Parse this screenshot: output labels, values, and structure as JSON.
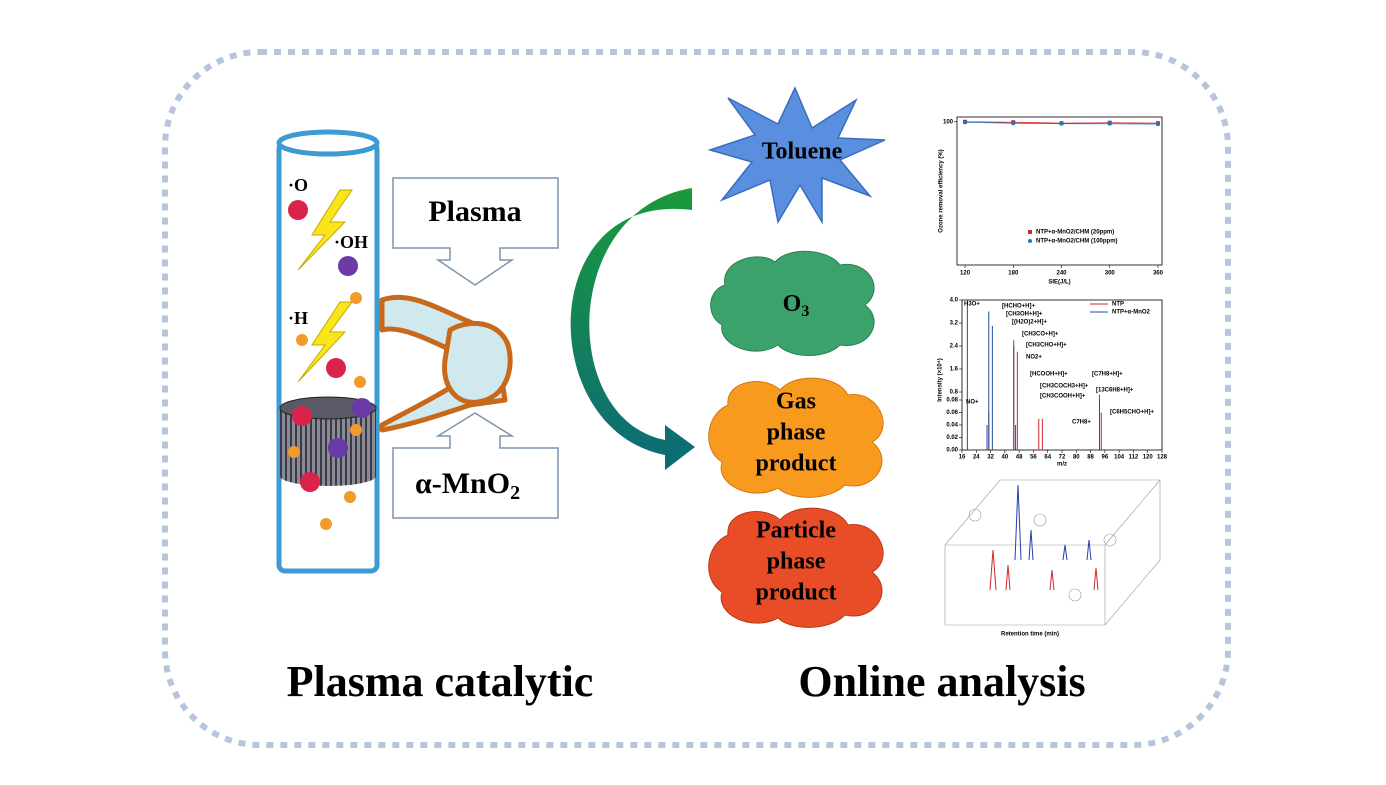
{
  "left": {
    "title": "Plasma catalytic",
    "plasma_label": "Plasma",
    "catalyst_label": {
      "main": "α-MnO",
      "sub": "2"
    },
    "radicals": [
      "·O",
      "·OH",
      "·H"
    ]
  },
  "right": {
    "title": "Online analysis",
    "toluene": "Toluene",
    "ozone": {
      "main": "O",
      "sub": "3"
    },
    "gas_product": [
      "Gas",
      "phase",
      "product"
    ],
    "particle_product": [
      "Particle",
      "phase",
      "product"
    ]
  },
  "chart1": {
    "ylabel": "Ozone removal efficiency (%)",
    "xlabel": "SIE(J/L)",
    "xlim": [
      110,
      365
    ],
    "xticks": [
      120,
      180,
      240,
      300,
      360
    ],
    "ylim": [
      70,
      101
    ],
    "yticks": [
      100
    ],
    "x": [
      120,
      180,
      240,
      300,
      360
    ],
    "series": [
      {
        "name": "NTP+α-MnO2/CHM (20ppm)",
        "color": "#d62728",
        "values": [
          100,
          99.9,
          99.7,
          99.8,
          99.7
        ]
      },
      {
        "name": "NTP+α-MnO2/CHM (100ppm)",
        "color": "#1f77b4",
        "values": [
          99.9,
          99.7,
          99.6,
          99.6,
          99.5
        ]
      }
    ]
  },
  "chart2": {
    "ylabel": "Intensity (×10⁴)",
    "xlabel": "m/z",
    "xlim": [
      16,
      128
    ],
    "xticks": [
      16,
      24,
      32,
      40,
      48,
      56,
      64,
      72,
      80,
      88,
      96,
      104,
      112,
      120,
      128
    ],
    "ylim_upper": [
      0.8,
      4.0
    ],
    "yticks_upper": [
      {
        "value": 0.8,
        "label": "0.8"
      },
      {
        "value": 1.6,
        "label": "1.6"
      },
      {
        "value": 2.4,
        "label": "2.4"
      },
      {
        "value": 3.2,
        "label": "3.2"
      },
      {
        "value": 4.0,
        "label": "4.0"
      }
    ],
    "ylim_lower": [
      0,
      0.08
    ],
    "yticks_lower": [
      {
        "value": 0,
        "label": "0.00"
      },
      {
        "value": 0.02,
        "label": "0.02"
      },
      {
        "value": 0.04,
        "label": "0.04"
      },
      {
        "value": 0.06,
        "label": "0.06"
      },
      {
        "value": 0.08,
        "label": "0.08"
      }
    ],
    "series": [
      {
        "name": "NTP",
        "color": "#d62728",
        "x": [
          31,
          45,
          47,
          59,
          61,
          93,
          94
        ],
        "values": [
          0.06,
          2.6,
          2.2,
          0.05,
          0.05,
          0.7,
          0.06
        ]
      },
      {
        "name": "NTP+α-MnO2",
        "color": "#1f4fa0",
        "x": [
          19,
          30,
          31,
          33,
          45,
          46,
          93
        ],
        "values": [
          4.0,
          0.04,
          3.6,
          3.1,
          2.4,
          0.04,
          0.08
        ]
      }
    ],
    "annotations": [
      "H3O+",
      "[HCHO+H]+",
      "[CH3OH+H]+",
      "[(H2O)2+H]+",
      "[CH3CO+H]+",
      "[CH3CHO+H]+",
      "NO2+",
      "[HCOOH+H]+",
      "[CH3COCH3+H]+",
      "[CH3COOH+H]+",
      "[C7H8+H]+",
      "[13C6H8+H]+",
      "C7H8+",
      "[C6H5CHO+H]+",
      "NO+"
    ]
  },
  "chart3": {
    "xlabel": "Retention time (min)"
  }
}
